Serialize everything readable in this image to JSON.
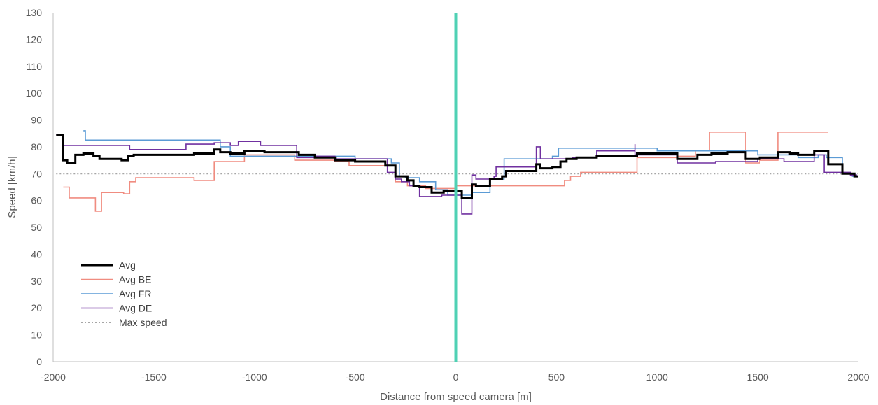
{
  "chart_data": {
    "type": "line",
    "title": "",
    "xlabel": "Distance from speed camera [m]",
    "ylabel": "Speed [km/h]",
    "xlim": [
      -2000,
      2000
    ],
    "ylim": [
      0,
      130
    ],
    "x_ticks": [
      -2000,
      -1500,
      -1000,
      -500,
      0,
      500,
      1000,
      1500,
      2000
    ],
    "y_ticks": [
      0,
      10,
      20,
      30,
      40,
      50,
      60,
      70,
      80,
      90,
      100,
      110,
      120,
      130
    ],
    "grid": false,
    "legend": "bottom-left",
    "camera_marker": {
      "x": 0,
      "color": "#4fd1b4"
    },
    "series": [
      {
        "name": "Avg",
        "color": "#000000",
        "style": "solid-thick",
        "points": [
          [
            -1985,
            84.5
          ],
          [
            -1950,
            84.5
          ],
          [
            -1950,
            75
          ],
          [
            -1930,
            75
          ],
          [
            -1930,
            74
          ],
          [
            -1890,
            74
          ],
          [
            -1890,
            77
          ],
          [
            -1850,
            77
          ],
          [
            -1850,
            77.5
          ],
          [
            -1800,
            77.5
          ],
          [
            -1800,
            76.5
          ],
          [
            -1770,
            76.5
          ],
          [
            -1770,
            75.5
          ],
          [
            -1660,
            75.5
          ],
          [
            -1660,
            75
          ],
          [
            -1630,
            75
          ],
          [
            -1630,
            76.5
          ],
          [
            -1600,
            76.5
          ],
          [
            -1600,
            77
          ],
          [
            -1300,
            77
          ],
          [
            -1300,
            77.5
          ],
          [
            -1200,
            77.5
          ],
          [
            -1200,
            79
          ],
          [
            -1170,
            79
          ],
          [
            -1170,
            78
          ],
          [
            -1120,
            78
          ],
          [
            -1120,
            77.5
          ],
          [
            -1050,
            77.5
          ],
          [
            -1050,
            78.5
          ],
          [
            -950,
            78.5
          ],
          [
            -950,
            78
          ],
          [
            -780,
            78
          ],
          [
            -780,
            77
          ],
          [
            -700,
            77
          ],
          [
            -700,
            76
          ],
          [
            -600,
            76
          ],
          [
            -600,
            75
          ],
          [
            -500,
            75
          ],
          [
            -500,
            74.5
          ],
          [
            -350,
            74.5
          ],
          [
            -350,
            73
          ],
          [
            -300,
            73
          ],
          [
            -300,
            69
          ],
          [
            -240,
            69
          ],
          [
            -240,
            67.5
          ],
          [
            -210,
            67.5
          ],
          [
            -210,
            65.5
          ],
          [
            -180,
            65.5
          ],
          [
            -180,
            65
          ],
          [
            -120,
            65
          ],
          [
            -120,
            63
          ],
          [
            -60,
            63
          ],
          [
            -60,
            63.5
          ],
          [
            30,
            63.5
          ],
          [
            30,
            61
          ],
          [
            80,
            61
          ],
          [
            80,
            66
          ],
          [
            100,
            66
          ],
          [
            100,
            65.5
          ],
          [
            170,
            65.5
          ],
          [
            170,
            68
          ],
          [
            230,
            68
          ],
          [
            230,
            69
          ],
          [
            250,
            69
          ],
          [
            250,
            71
          ],
          [
            400,
            71
          ],
          [
            400,
            73.5
          ],
          [
            420,
            73.5
          ],
          [
            420,
            72
          ],
          [
            480,
            72
          ],
          [
            480,
            72.5
          ],
          [
            520,
            72.5
          ],
          [
            520,
            74.5
          ],
          [
            550,
            74.5
          ],
          [
            550,
            75.5
          ],
          [
            600,
            75.5
          ],
          [
            600,
            76
          ],
          [
            700,
            76
          ],
          [
            700,
            76.5
          ],
          [
            900,
            76.5
          ],
          [
            900,
            77.5
          ],
          [
            1100,
            77.5
          ],
          [
            1100,
            75.5
          ],
          [
            1200,
            75.5
          ],
          [
            1200,
            77
          ],
          [
            1270,
            77
          ],
          [
            1270,
            77.5
          ],
          [
            1350,
            77.5
          ],
          [
            1350,
            78
          ],
          [
            1440,
            78
          ],
          [
            1440,
            75.5
          ],
          [
            1510,
            75.5
          ],
          [
            1510,
            76
          ],
          [
            1600,
            76
          ],
          [
            1600,
            78
          ],
          [
            1660,
            78
          ],
          [
            1660,
            77.5
          ],
          [
            1700,
            77.5
          ],
          [
            1700,
            77
          ],
          [
            1780,
            77
          ],
          [
            1780,
            78.5
          ],
          [
            1850,
            78.5
          ],
          [
            1850,
            73.5
          ],
          [
            1920,
            73.5
          ],
          [
            1920,
            70
          ],
          [
            1980,
            70
          ],
          [
            1980,
            69
          ],
          [
            2000,
            69
          ]
        ]
      },
      {
        "name": "Avg BE",
        "color": "#f08c80",
        "style": "solid",
        "points": [
          [
            -1950,
            65
          ],
          [
            -1920,
            65
          ],
          [
            -1920,
            61
          ],
          [
            -1790,
            61
          ],
          [
            -1790,
            56
          ],
          [
            -1760,
            56
          ],
          [
            -1760,
            63
          ],
          [
            -1650,
            63
          ],
          [
            -1650,
            62.5
          ],
          [
            -1620,
            62.5
          ],
          [
            -1620,
            67
          ],
          [
            -1590,
            67
          ],
          [
            -1590,
            68.5
          ],
          [
            -1300,
            68.5
          ],
          [
            -1300,
            67.5
          ],
          [
            -1200,
            67.5
          ],
          [
            -1200,
            74.5
          ],
          [
            -1050,
            74.5
          ],
          [
            -1050,
            77
          ],
          [
            -800,
            77
          ],
          [
            -800,
            75
          ],
          [
            -600,
            75
          ],
          [
            -600,
            74.5
          ],
          [
            -530,
            74.5
          ],
          [
            -530,
            73
          ],
          [
            -300,
            73
          ],
          [
            -300,
            67
          ],
          [
            -240,
            67
          ],
          [
            -240,
            65.5
          ],
          [
            -150,
            65.5
          ],
          [
            -150,
            64.5
          ],
          [
            0,
            64.5
          ],
          [
            0,
            65.5
          ],
          [
            150,
            65.5
          ],
          [
            150,
            65.5
          ],
          [
            250,
            65.5
          ],
          [
            250,
            65.5
          ],
          [
            540,
            65.5
          ],
          [
            540,
            67.5
          ],
          [
            570,
            67.5
          ],
          [
            570,
            69
          ],
          [
            620,
            69
          ],
          [
            620,
            70.5
          ],
          [
            900,
            70.5
          ],
          [
            900,
            76
          ],
          [
            1100,
            76
          ],
          [
            1100,
            76.5
          ],
          [
            1190,
            76.5
          ],
          [
            1190,
            78.5
          ],
          [
            1260,
            78.5
          ],
          [
            1260,
            85.5
          ],
          [
            1440,
            85.5
          ],
          [
            1440,
            74
          ],
          [
            1510,
            74
          ],
          [
            1510,
            75
          ],
          [
            1600,
            75
          ],
          [
            1600,
            85.5
          ],
          [
            1850,
            85.5
          ]
        ]
      },
      {
        "name": "Avg FR",
        "color": "#5b9bd5",
        "style": "solid",
        "points": [
          [
            -1850,
            86
          ],
          [
            -1840,
            86
          ],
          [
            -1840,
            82.5
          ],
          [
            -1170,
            82.5
          ],
          [
            -1170,
            80
          ],
          [
            -1120,
            80
          ],
          [
            -1120,
            76.5
          ],
          [
            -800,
            76.5
          ],
          [
            -800,
            76.5
          ],
          [
            -500,
            76.5
          ],
          [
            -500,
            75.5
          ],
          [
            -320,
            75.5
          ],
          [
            -320,
            74
          ],
          [
            -280,
            74
          ],
          [
            -280,
            69
          ],
          [
            -250,
            69
          ],
          [
            -250,
            68.5
          ],
          [
            -180,
            68.5
          ],
          [
            -180,
            67
          ],
          [
            -100,
            67
          ],
          [
            -100,
            64
          ],
          [
            -40,
            64
          ],
          [
            -40,
            62
          ],
          [
            60,
            62
          ],
          [
            60,
            62
          ],
          [
            80,
            62
          ],
          [
            80,
            63
          ],
          [
            170,
            63
          ],
          [
            170,
            68
          ],
          [
            240,
            68
          ],
          [
            240,
            75.5
          ],
          [
            480,
            75.5
          ],
          [
            480,
            76.5
          ],
          [
            510,
            76.5
          ],
          [
            510,
            79.5
          ],
          [
            1000,
            79.5
          ],
          [
            1000,
            78.5
          ],
          [
            1500,
            78.5
          ],
          [
            1500,
            77
          ],
          [
            1700,
            77
          ],
          [
            1700,
            76
          ],
          [
            1800,
            76
          ],
          [
            1800,
            77
          ],
          [
            1840,
            77
          ],
          [
            1840,
            76
          ],
          [
            1920,
            76
          ],
          [
            1920,
            70
          ],
          [
            1970,
            70
          ],
          [
            1970,
            69
          ],
          [
            2000,
            69
          ]
        ]
      },
      {
        "name": "Avg DE",
        "color": "#7030a0",
        "style": "solid",
        "points": [
          [
            -1985,
            84.5
          ],
          [
            -1950,
            84.5
          ],
          [
            -1950,
            80.5
          ],
          [
            -1620,
            80.5
          ],
          [
            -1620,
            79
          ],
          [
            -1340,
            79
          ],
          [
            -1340,
            81
          ],
          [
            -1200,
            81
          ],
          [
            -1200,
            81.5
          ],
          [
            -1120,
            81.5
          ],
          [
            -1120,
            80.5
          ],
          [
            -1080,
            80.5
          ],
          [
            -1080,
            82
          ],
          [
            -970,
            82
          ],
          [
            -970,
            80.5
          ],
          [
            -790,
            80.5
          ],
          [
            -790,
            76
          ],
          [
            -700,
            76
          ],
          [
            -700,
            76.5
          ],
          [
            -600,
            76.5
          ],
          [
            -600,
            75.5
          ],
          [
            -340,
            75.5
          ],
          [
            -340,
            70.5
          ],
          [
            -300,
            70.5
          ],
          [
            -300,
            68
          ],
          [
            -270,
            68
          ],
          [
            -270,
            67
          ],
          [
            -230,
            67
          ],
          [
            -230,
            65.5
          ],
          [
            -180,
            65.5
          ],
          [
            -180,
            61.5
          ],
          [
            -70,
            61.5
          ],
          [
            -70,
            62
          ],
          [
            30,
            62
          ],
          [
            30,
            55
          ],
          [
            80,
            55
          ],
          [
            80,
            69.5
          ],
          [
            100,
            69.5
          ],
          [
            100,
            68
          ],
          [
            190,
            68
          ],
          [
            190,
            69
          ],
          [
            200,
            69
          ],
          [
            200,
            72.5
          ],
          [
            400,
            72.5
          ],
          [
            400,
            80
          ],
          [
            420,
            80
          ],
          [
            420,
            75.5
          ],
          [
            500,
            75.5
          ],
          [
            500,
            75.5
          ],
          [
            580,
            75.5
          ],
          [
            580,
            76
          ],
          [
            700,
            76
          ],
          [
            700,
            78.5
          ],
          [
            890,
            78.5
          ],
          [
            890,
            81
          ],
          [
            890,
            77
          ],
          [
            1100,
            77
          ],
          [
            1100,
            74
          ],
          [
            1290,
            74
          ],
          [
            1290,
            74.5
          ],
          [
            1500,
            74.5
          ],
          [
            1500,
            75.5
          ],
          [
            1630,
            75.5
          ],
          [
            1630,
            74.5
          ],
          [
            1780,
            74.5
          ],
          [
            1780,
            77
          ],
          [
            1830,
            77
          ],
          [
            1830,
            70.5
          ],
          [
            1960,
            70.5
          ],
          [
            1960,
            69.5
          ],
          [
            1990,
            69.5
          ],
          [
            1990,
            69
          ],
          [
            2000,
            69
          ]
        ]
      },
      {
        "name": "Max speed",
        "color": "#a6a6a6",
        "style": "dotted",
        "points": [
          [
            -1985,
            70
          ],
          [
            2000,
            70
          ]
        ]
      }
    ]
  }
}
